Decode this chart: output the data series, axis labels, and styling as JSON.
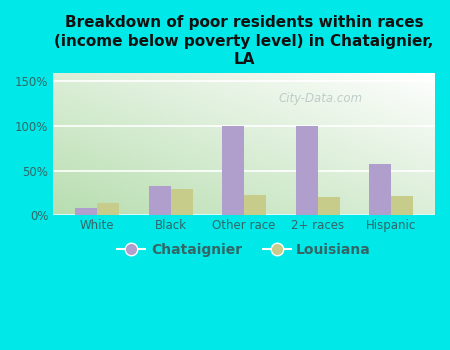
{
  "title": "Breakdown of poor residents within races\n(income below poverty level) in Chataignier,\nLA",
  "categories": [
    "White",
    "Black",
    "Other race",
    "2+ races",
    "Hispanic"
  ],
  "chataignier_values": [
    8,
    33,
    100,
    100,
    57
  ],
  "louisiana_values": [
    14,
    29,
    23,
    20,
    21
  ],
  "chataignier_color": "#b09fcc",
  "louisiana_color": "#c8cc8a",
  "background_color": "#00e8e8",
  "plot_bg_gradient_bottom_left": "#b8ddb0",
  "plot_bg_gradient_top_right": "#f8fdf5",
  "ylim": [
    0,
    160
  ],
  "yticks": [
    0,
    50,
    100,
    150
  ],
  "ytick_labels": [
    "0%",
    "50%",
    "100%",
    "150%"
  ],
  "bar_width": 0.3,
  "title_fontsize": 11,
  "legend_fontsize": 10,
  "tick_fontsize": 8.5,
  "tick_color": "#336666",
  "title_color": "#111111",
  "watermark": "City-Data.com",
  "watermark_color": "#aabbbb",
  "watermark_alpha": 0.7
}
